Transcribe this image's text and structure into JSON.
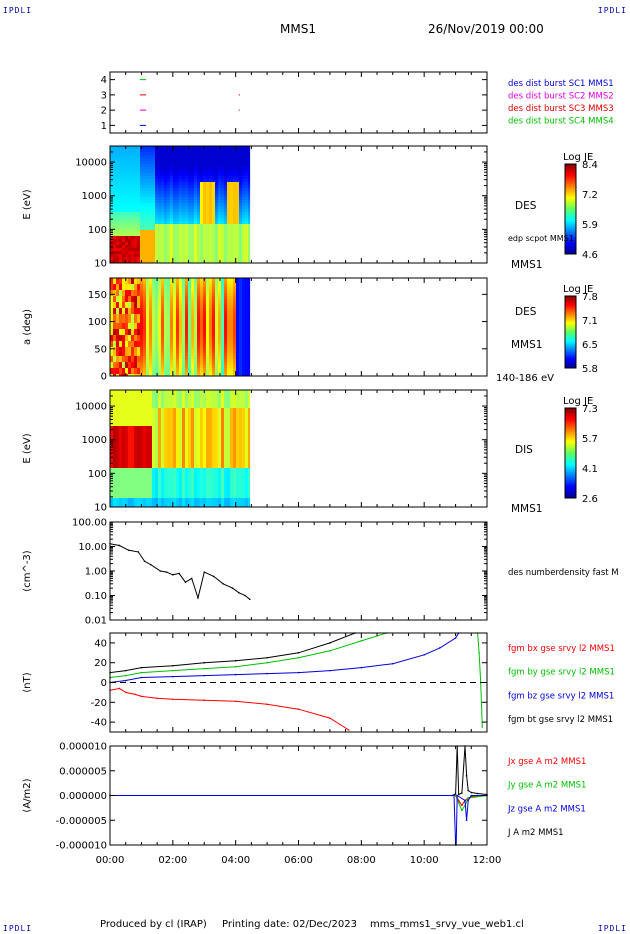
{
  "header": {
    "corner_labels": [
      "IPDLI",
      "IPDLI",
      "IPDLI",
      "IPDLI"
    ],
    "spacecraft": "MMS1",
    "date": "26/Nov/2019 00:00"
  },
  "footer": {
    "produced_by": "Produced by cl (IRAP)",
    "printing_date": "Printing date: 02/Dec/2023",
    "filename": "mms_mms1_srvy_vue_web1.cl"
  },
  "time_axis": {
    "range_hours": [
      0,
      12
    ],
    "ticks": [
      "00:00",
      "02:00",
      "04:00",
      "06:00",
      "08:00",
      "10:00",
      "12:00"
    ]
  },
  "colors": {
    "red": "#ff0000",
    "green": "#00c000",
    "blue": "#0000dd",
    "magenta": "#dd00dd",
    "black": "#000000"
  },
  "chart_data": [
    {
      "id": "burst",
      "type": "line",
      "yticks": [
        "1",
        "2",
        "3",
        "4"
      ],
      "ylim": [
        0.5,
        4.5
      ],
      "legend": [
        {
          "text": "des dist burst SC1 MMS1",
          "color": "#0000dd"
        },
        {
          "text": "des dist burst SC2 MMS2",
          "color": "#dd00dd"
        },
        {
          "text": "des dist burst SC3 MMS3",
          "color": "#dd0000"
        },
        {
          "text": "des dist burst SC4 MMS4",
          "color": "#00c000"
        }
      ],
      "series": [
        {
          "y": 4,
          "color": "#00c000",
          "segments": [
            [
              0.95,
              1.15
            ]
          ]
        },
        {
          "y": 3,
          "color": "#dd0000",
          "segments": [
            [
              0.95,
              1.15
            ],
            [
              4.1,
              4.14
            ]
          ]
        },
        {
          "y": 2,
          "color": "#dd00dd",
          "segments": [
            [
              0.95,
              1.15
            ],
            [
              4.1,
              4.14
            ]
          ]
        },
        {
          "y": 1,
          "color": "#0000dd",
          "segments": [
            [
              0.95,
              1.15
            ]
          ]
        }
      ]
    },
    {
      "id": "des_energy",
      "type": "heatmap",
      "ylabel": "E (eV)",
      "yscale": "log",
      "ylim": [
        10,
        30000
      ],
      "yticks": [
        "10",
        "100",
        "1000",
        "10000"
      ],
      "data_end_hours": 4.45,
      "right_labels": [
        "DES",
        "edp scpot MMS1",
        "MMS1"
      ],
      "colorbar": {
        "title": "Log JE",
        "ticks": [
          "8.4",
          "7.2",
          "5.9",
          "4.6"
        ],
        "range": [
          4.6,
          8.4
        ]
      }
    },
    {
      "id": "des_pitch",
      "type": "heatmap",
      "ylabel": "a (deg)",
      "ylim": [
        0,
        180
      ],
      "yticks": [
        "0",
        "50",
        "100",
        "150"
      ],
      "data_end_hours": 4.45,
      "right_labels": [
        "DES",
        "MMS1",
        "140-186 eV"
      ],
      "colorbar": {
        "title": "Log JE",
        "ticks": [
          "7.8",
          "7.1",
          "6.5",
          "5.8"
        ],
        "range": [
          5.8,
          7.8
        ]
      }
    },
    {
      "id": "dis_energy",
      "type": "heatmap",
      "ylabel": "E (eV)",
      "yscale": "log",
      "ylim": [
        10,
        30000
      ],
      "yticks": [
        "10",
        "100",
        "1000",
        "10000"
      ],
      "data_end_hours": 4.45,
      "right_labels": [
        "DIS",
        "MMS1"
      ],
      "colorbar": {
        "title": "Log JE",
        "ticks": [
          "7.3",
          "5.7",
          "4.1",
          "2.6"
        ],
        "range": [
          2.6,
          7.3
        ]
      }
    },
    {
      "id": "density",
      "type": "line",
      "ylabel": "(cm^-3)",
      "yscale": "log",
      "ylim": [
        0.01,
        100
      ],
      "yticks": [
        "0.01",
        "0.10",
        "1.00",
        "10.00",
        "100.00"
      ],
      "legend": [
        {
          "text": "des numberdensity fast M",
          "color": "#000000"
        }
      ],
      "series": [
        {
          "name": "des numberdensity fast M",
          "color": "#000000",
          "x": [
            0.0,
            0.3,
            0.6,
            0.9,
            1.1,
            1.3,
            1.6,
            1.8,
            2.0,
            2.2,
            2.4,
            2.6,
            2.8,
            3.0,
            3.3,
            3.6,
            3.9,
            4.1,
            4.3,
            4.45
          ],
          "y": [
            13,
            11,
            7,
            6,
            2.5,
            1.8,
            1.0,
            0.9,
            0.7,
            0.8,
            0.35,
            0.5,
            0.08,
            0.9,
            0.6,
            0.3,
            0.2,
            0.13,
            0.1,
            0.07
          ]
        }
      ]
    },
    {
      "id": "fgm",
      "type": "line",
      "ylabel": "(nT)",
      "ylim": [
        -50,
        50
      ],
      "yticks": [
        "-40",
        "-20",
        "0",
        "20",
        "40"
      ],
      "legend": [
        {
          "text": "fgm bx gse srvy l2 MMS1",
          "color": "#ff0000"
        },
        {
          "text": "fgm by gse srvy l2 MMS1",
          "color": "#00c000"
        },
        {
          "text": "fgm bz gse srvy l2 MMS1",
          "color": "#0000dd"
        },
        {
          "text": "fgm bt gse srvy l2 MMS1",
          "color": "#000000"
        }
      ],
      "series": [
        {
          "name": "fgm bt gse srvy l2 MMS1",
          "color": "#000000",
          "x": [
            0,
            0.5,
            1,
            2,
            3,
            4,
            5,
            6,
            7,
            7.8
          ],
          "y": [
            10,
            12,
            15,
            17,
            20,
            22,
            25,
            30,
            40,
            50
          ]
        },
        {
          "name": "fgm by gse srvy l2 MMS1",
          "color": "#00c000",
          "x": [
            0,
            0.5,
            1,
            2,
            3,
            4,
            5,
            6,
            7,
            8,
            8.8,
            11.7,
            11.75,
            11.8,
            11.85
          ],
          "y": [
            5,
            7,
            10,
            12,
            14,
            16,
            20,
            25,
            32,
            42,
            50,
            50,
            30,
            0,
            -45
          ]
        },
        {
          "name": "fgm bz gse srvy l2 MMS1",
          "color": "#0000dd",
          "x": [
            0,
            0.5,
            1,
            2,
            3,
            4,
            5,
            6,
            7,
            8,
            9,
            10,
            10.5,
            11,
            11.1
          ],
          "y": [
            0,
            2,
            5,
            6,
            7,
            8,
            9,
            10,
            12,
            15,
            19,
            28,
            35,
            45,
            50
          ]
        },
        {
          "name": "fgm bx gse srvy l2 MMS1",
          "color": "#ff0000",
          "x": [
            0,
            0.3,
            0.5,
            0.8,
            1,
            1.5,
            2,
            3,
            4,
            5,
            6,
            7,
            7.6
          ],
          "y": [
            -8,
            -6,
            -10,
            -12,
            -14,
            -16,
            -17,
            -18,
            -19,
            -22,
            -27,
            -36,
            -48
          ]
        }
      ]
    },
    {
      "id": "current",
      "type": "line",
      "ylabel": "(A/m2)",
      "ylim": [
        -1e-05,
        1e-05
      ],
      "yticks": [
        "-0.000010",
        "-0.000005",
        "0.000000",
        "0.000005",
        "0.000010"
      ],
      "legend": [
        {
          "text": "Jx gse A m2 MMS1",
          "color": "#ff0000"
        },
        {
          "text": "Jy gse A m2 MMS1",
          "color": "#00c000"
        },
        {
          "text": "Jz gse A m2 MMS1",
          "color": "#0000dd"
        },
        {
          "text": "J A m2 MMS1",
          "color": "#000000"
        }
      ],
      "series": [
        {
          "name": "J A m2 MMS1",
          "color": "#000000",
          "x": [
            0,
            10.9,
            11.0,
            11.05,
            11.1,
            11.2,
            11.3,
            11.35,
            11.4,
            11.5,
            11.7,
            12
          ],
          "y": [
            0,
            0,
            3e-07,
            1e-05,
            2e-07,
            5e-07,
            1e-05,
            4e-06,
            1e-06,
            6e-07,
            4e-07,
            2e-07
          ]
        },
        {
          "name": "Jx gse A m2 MMS1",
          "color": "#ff0000",
          "x": [
            0,
            11.0,
            11.1,
            11.2,
            11.3,
            11.4,
            11.5,
            12
          ],
          "y": [
            0,
            0,
            -1e-06,
            -2e-06,
            -1e-06,
            -5e-07,
            -2e-07,
            0
          ]
        },
        {
          "name": "Jy gse A m2 MMS1",
          "color": "#00c000",
          "x": [
            0,
            11.0,
            11.1,
            11.2,
            11.3,
            11.4,
            12
          ],
          "y": [
            0,
            0,
            -1.5e-06,
            -3e-06,
            -2e-06,
            -5e-07,
            0
          ]
        },
        {
          "name": "Jz gse A m2 MMS1",
          "color": "#0000dd",
          "x": [
            0,
            10.95,
            11.0,
            11.02,
            11.05,
            11.3,
            11.35,
            11.4,
            11.5,
            12
          ],
          "y": [
            0,
            0,
            -1e-05,
            -1e-05,
            0,
            -1e-06,
            -5e-06,
            -1e-06,
            0,
            0
          ]
        }
      ]
    }
  ]
}
